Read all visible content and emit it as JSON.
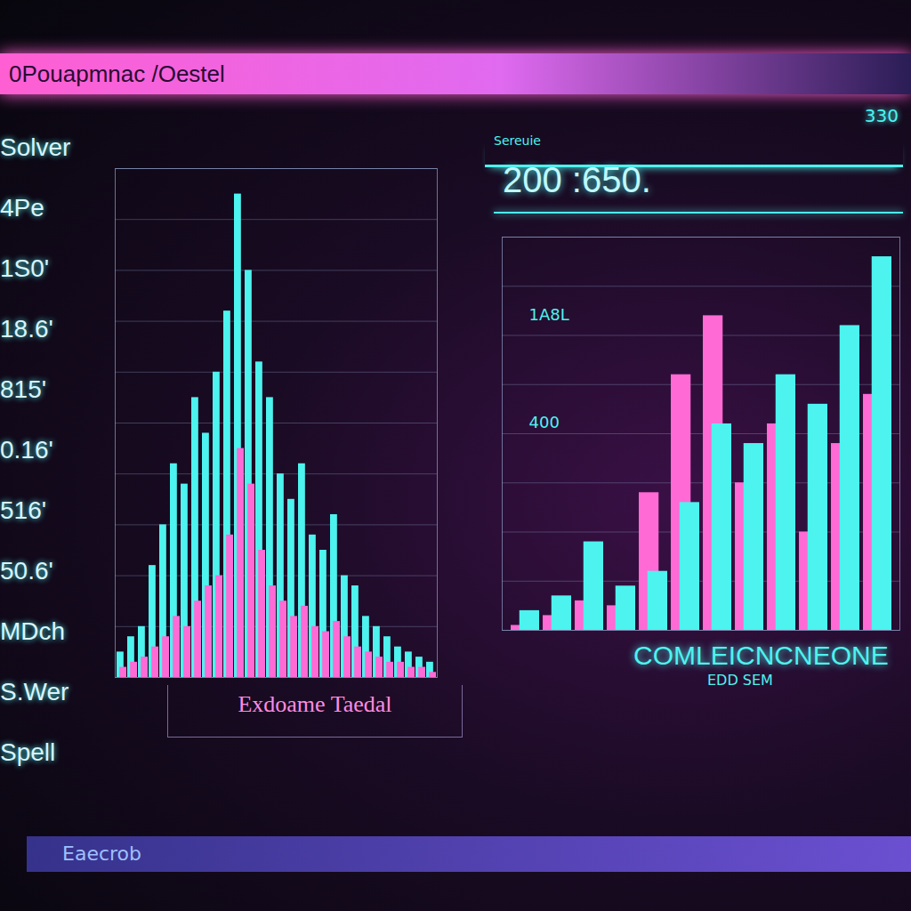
{
  "header": {
    "title": "0Pouapmnac /Oestel",
    "corner": "330"
  },
  "sidebar": [
    "Solver",
    "4Pe",
    "1S0'",
    "18.6'",
    "815'",
    "0.16'",
    "516'",
    "50.6'",
    "MDch",
    "S.Wer",
    "Spell"
  ],
  "panel": {
    "label": "Sereuie",
    "readout": "200 :650."
  },
  "footer": "Eaecrob",
  "chart_data": [
    {
      "type": "bar",
      "title": "Exdoame Taedal",
      "categories": [
        null,
        null,
        null,
        null,
        null,
        null,
        null,
        null,
        null,
        null,
        null,
        null,
        null,
        null,
        null,
        null,
        null,
        null,
        null,
        null,
        null,
        null,
        null,
        null,
        null,
        null,
        null,
        null,
        null,
        null
      ],
      "series": [
        {
          "color": "#4df3ee",
          "values": [
            5,
            8,
            10,
            22,
            30,
            42,
            38,
            55,
            48,
            60,
            72,
            95,
            80,
            62,
            55,
            40,
            35,
            42,
            28,
            25,
            32,
            20,
            18,
            12,
            10,
            8,
            6,
            5,
            4,
            3
          ]
        },
        {
          "color": "#ff6ad5",
          "values": [
            2,
            3,
            4,
            6,
            8,
            12,
            10,
            15,
            18,
            20,
            28,
            45,
            38,
            25,
            18,
            15,
            12,
            14,
            10,
            9,
            11,
            8,
            6,
            5,
            4,
            3,
            3,
            2,
            2,
            1
          ]
        }
      ],
      "ylim": [
        0,
        100
      ],
      "yticks": [
        0,
        10,
        20,
        30,
        40,
        50,
        60,
        70,
        80,
        90,
        100
      ],
      "grid": true,
      "stacked": false,
      "tick_labels": false
    },
    {
      "type": "bar",
      "title": "COMLEICNCNEONE",
      "subtitle": "EDD SEM",
      "categories": [
        null,
        null,
        null,
        null,
        null,
        null,
        null,
        null,
        null,
        null,
        null,
        null
      ],
      "series": [
        {
          "color": "#ff6ad5",
          "values": [
            10,
            30,
            60,
            50,
            280,
            520,
            640,
            300,
            420,
            200,
            380,
            480
          ]
        },
        {
          "color": "#4df3ee",
          "values": [
            40,
            70,
            180,
            90,
            120,
            260,
            420,
            380,
            520,
            460,
            620,
            760
          ]
        }
      ],
      "annotations": [
        {
          "text": "1A8L",
          "y": 620
        },
        {
          "text": "400",
          "y": 400
        }
      ],
      "ylim": [
        0,
        800
      ],
      "yticks": [
        0,
        100,
        200,
        300,
        400,
        500,
        600,
        700,
        800
      ],
      "grid": true,
      "stacked": false,
      "tick_labels": false
    }
  ]
}
